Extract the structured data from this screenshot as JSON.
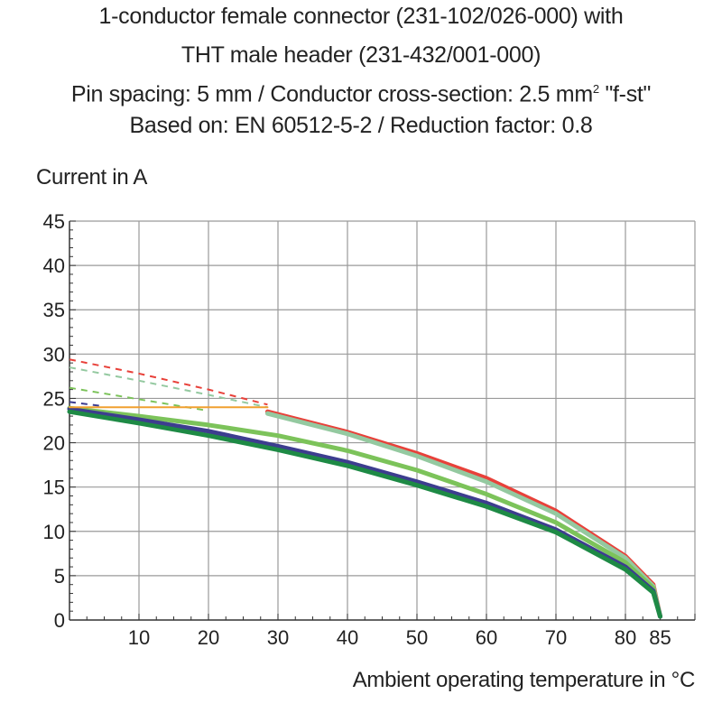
{
  "chart_data": {
    "type": "line",
    "title_line_1": "1-conductor female connector (231-102/026-000) with",
    "title_line_2": "THT male header (231-432/001-000)",
    "title_line_3a": "Pin spacing: 5 mm / Conductor cross-section: 2.5 mm",
    "title_line_3_sup": "2",
    "title_line_3b": " \"f-st\"",
    "title_line_4": "Based on: EN 60512-5-2 / Reduction factor: 0.8",
    "ylabel": "Current in A",
    "xlabel": "Ambient operating temperature in °C",
    "xlim": [
      0,
      90
    ],
    "ylim": [
      0,
      45
    ],
    "x_ticks": [
      10,
      20,
      30,
      40,
      50,
      60,
      70,
      80,
      85
    ],
    "y_ticks": [
      0,
      5,
      10,
      15,
      20,
      25,
      30,
      35,
      40,
      45
    ],
    "grid": true,
    "series": [
      {
        "color": "#e8413a",
        "dashed": {
          "x": [
            0,
            10,
            20,
            28.5
          ],
          "y": [
            29.4,
            27.8,
            26.0,
            24.3
          ]
        },
        "solid": {
          "x": [
            28.5,
            40,
            50,
            60,
            70,
            80,
            84,
            85
          ],
          "y": [
            23.5,
            21.2,
            18.8,
            16.0,
            12.3,
            7.2,
            4.0,
            0.4
          ]
        }
      },
      {
        "color": "#94c9a0",
        "dashed": {
          "x": [
            0,
            10,
            20,
            28.5
          ],
          "y": [
            28.5,
            27.0,
            25.4,
            24.0
          ]
        },
        "solid": {
          "x": [
            28.5,
            40,
            50,
            60,
            70,
            80,
            84,
            85
          ],
          "y": [
            23.3,
            21.0,
            18.5,
            15.6,
            12.0,
            7.0,
            3.8,
            0.4
          ]
        }
      },
      {
        "color": "#7cc35a",
        "dashed": {
          "x": [
            0,
            10,
            20
          ],
          "y": [
            26.2,
            24.9,
            23.6
          ]
        },
        "solid": {
          "x": [
            0,
            10,
            20,
            30,
            40,
            50,
            60,
            70,
            80,
            84,
            85
          ],
          "y": [
            23.9,
            23.0,
            22.0,
            20.8,
            19.1,
            16.9,
            14.2,
            11.0,
            6.5,
            3.6,
            0.4
          ]
        }
      },
      {
        "color": "#3d3d8f",
        "dashed": {
          "x": [
            0,
            5
          ],
          "y": [
            24.6,
            24.1
          ]
        },
        "solid": {
          "x": [
            0,
            10,
            20,
            30,
            40,
            50,
            60,
            70,
            80,
            84,
            85
          ],
          "y": [
            23.8,
            22.6,
            21.3,
            19.6,
            17.8,
            15.6,
            13.2,
            10.2,
            6.0,
            3.3,
            0.4
          ]
        }
      },
      {
        "color": "#1e8a45",
        "solid": {
          "x": [
            0,
            10,
            20,
            30,
            40,
            50,
            60,
            70,
            80,
            84,
            85
          ],
          "y": [
            23.5,
            22.2,
            20.8,
            19.2,
            17.4,
            15.2,
            12.8,
            9.9,
            5.7,
            3.1,
            0.4
          ]
        }
      },
      {
        "color": "#f0a030",
        "solid": {
          "x": [
            0,
            28.5
          ],
          "y": [
            24.0,
            24.0
          ]
        }
      }
    ]
  }
}
